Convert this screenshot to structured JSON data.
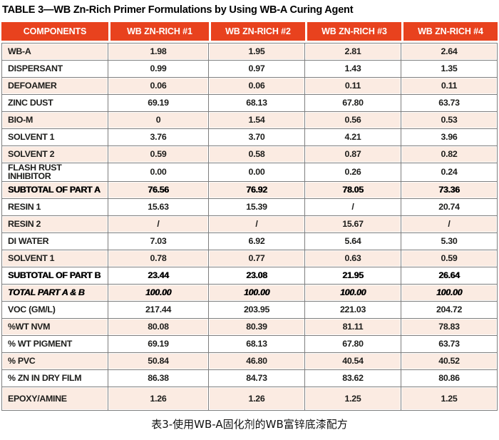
{
  "colors": {
    "header_bg": "#E8421E",
    "header_text": "#FFFFFF",
    "row_stripe_bg": "#FBEBE2",
    "row_plain_bg": "#FFFFFF",
    "grid_border": "#7E7E7E",
    "text": "#1D1D1B"
  },
  "chart_data": {
    "type": "table",
    "title": "TABLE 3—WB Zn-Rich Primer Formulations by Using WB-A Curing Agent",
    "caption_zh": "表3-使用WB-A固化剂的WB富锌底漆配方",
    "columns": [
      "COMPONENTS",
      "WB ZN-RICH #1",
      "WB ZN-RICH #2",
      "WB ZN-RICH #3",
      "WB ZN-RICH #4"
    ],
    "rows": [
      {
        "label": "WB-A",
        "values": [
          "1.98",
          "1.95",
          "2.81",
          "2.64"
        ],
        "kind": "component"
      },
      {
        "label": "DISPERSANT",
        "values": [
          "0.99",
          "0.97",
          "1.43",
          "1.35"
        ],
        "kind": "component"
      },
      {
        "label": "DEFOAMER",
        "values": [
          "0.06",
          "0.06",
          "0.11",
          "0.11"
        ],
        "kind": "component"
      },
      {
        "label": "ZINC DUST",
        "values": [
          "69.19",
          "68.13",
          "67.80",
          "63.73"
        ],
        "kind": "component"
      },
      {
        "label": "BIO-M",
        "values": [
          "0",
          "1.54",
          "0.56",
          "0.53"
        ],
        "kind": "component"
      },
      {
        "label": "SOLVENT 1",
        "values": [
          "3.76",
          "3.70",
          "4.21",
          "3.96"
        ],
        "kind": "component"
      },
      {
        "label": "SOLVENT 2",
        "values": [
          "0.59",
          "0.58",
          "0.87",
          "0.82"
        ],
        "kind": "component"
      },
      {
        "label": "FLASH RUST INHIBITOR",
        "values": [
          "0.00",
          "0.00",
          "0.26",
          "0.24"
        ],
        "kind": "component"
      },
      {
        "label": "SUBTOTAL OF PART A",
        "values": [
          "76.56",
          "76.92",
          "78.05",
          "73.36"
        ],
        "kind": "subtotal"
      },
      {
        "label": "RESIN 1",
        "values": [
          "15.63",
          "15.39",
          "/",
          "20.74"
        ],
        "kind": "component"
      },
      {
        "label": "RESIN 2",
        "values": [
          "/",
          "/",
          "15.67",
          "/"
        ],
        "kind": "component"
      },
      {
        "label": "DI WATER",
        "values": [
          "7.03",
          "6.92",
          "5.64",
          "5.30"
        ],
        "kind": "component"
      },
      {
        "label": "SOLVENT 1",
        "values": [
          "0.78",
          "0.77",
          "0.63",
          "0.59"
        ],
        "kind": "component"
      },
      {
        "label": "SUBTOTAL OF PART B",
        "values": [
          "23.44",
          "23.08",
          "21.95",
          "26.64"
        ],
        "kind": "subtotal"
      },
      {
        "label": "TOTAL PART A & B",
        "values": [
          "100.00",
          "100.00",
          "100.00",
          "100.00"
        ],
        "kind": "total"
      },
      {
        "label": "VOC (GM/L)",
        "values": [
          "217.44",
          "203.95",
          "221.03",
          "204.72"
        ],
        "kind": "property"
      },
      {
        "label": "%WT NVM",
        "values": [
          "80.08",
          "80.39",
          "81.11",
          "78.83"
        ],
        "kind": "property"
      },
      {
        "label": "% WT PIGMENT",
        "values": [
          "69.19",
          "68.13",
          "67.80",
          "63.73"
        ],
        "kind": "property"
      },
      {
        "label": "% PVC",
        "values": [
          "50.84",
          "46.80",
          "40.54",
          "40.52"
        ],
        "kind": "property"
      },
      {
        "label": "% ZN IN DRY FILM",
        "values": [
          "86.38",
          "84.73",
          "83.62",
          "80.86"
        ],
        "kind": "property"
      },
      {
        "label": "EPOXY/AMINE",
        "values": [
          "1.26",
          "1.26",
          "1.25",
          "1.25"
        ],
        "kind": "ratio"
      }
    ]
  }
}
